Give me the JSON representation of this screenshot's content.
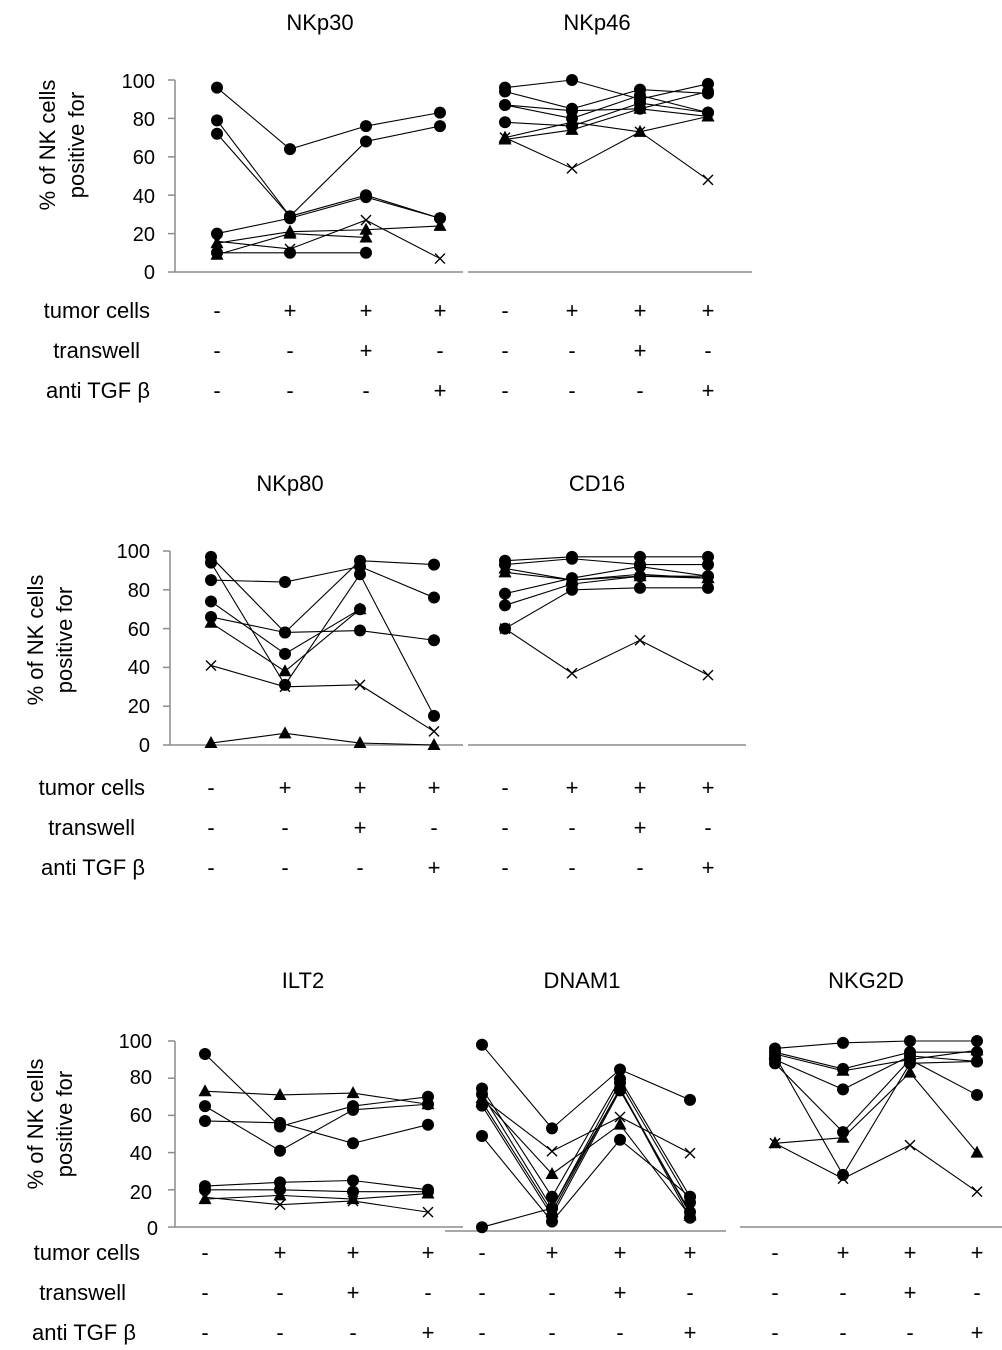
{
  "figure": {
    "y_label_line1": "% of NK cells",
    "y_label_line2": "positive for",
    "y_ticks": [
      "0",
      "20",
      "40",
      "60",
      "80",
      "100"
    ],
    "row_labels": [
      "tumor cells",
      "transwell",
      "anti TGF β"
    ],
    "condition_signs": [
      [
        "-",
        "+",
        "+",
        "+"
      ],
      [
        "-",
        "-",
        "+",
        "-"
      ],
      [
        "-",
        "-",
        "-",
        "+"
      ]
    ]
  },
  "chart_data": [
    {
      "type": "line",
      "title": "NKp30",
      "ylim": [
        0,
        100
      ],
      "x": [
        1,
        2,
        3,
        4
      ],
      "series": [
        {
          "marker": "circle",
          "values": [
            96,
            64,
            76,
            83
          ]
        },
        {
          "marker": "circle",
          "values": [
            79,
            29,
            68,
            76
          ]
        },
        {
          "marker": "circle",
          "values": [
            72,
            29,
            40,
            28
          ]
        },
        {
          "marker": "circle",
          "values": [
            20,
            28,
            39,
            28
          ]
        },
        {
          "marker": "circle",
          "values": [
            10,
            10,
            10,
            null
          ]
        },
        {
          "marker": "triangle",
          "values": [
            15,
            21,
            22,
            24
          ]
        },
        {
          "marker": "triangle",
          "values": [
            9,
            20,
            18,
            null
          ]
        },
        {
          "marker": "cross",
          "values": [
            16,
            12,
            27,
            7
          ]
        }
      ]
    },
    {
      "type": "line",
      "title": "NKp46",
      "ylim": [
        0,
        100
      ],
      "x": [
        1,
        2,
        3,
        4
      ],
      "series": [
        {
          "marker": "circle",
          "values": [
            96,
            100,
            90,
            98
          ]
        },
        {
          "marker": "circle",
          "values": [
            94,
            85,
            95,
            93
          ]
        },
        {
          "marker": "circle",
          "values": [
            87,
            84,
            85,
            94
          ]
        },
        {
          "marker": "circle",
          "values": [
            87,
            80,
            92,
            83
          ]
        },
        {
          "marker": "circle",
          "values": [
            78,
            76,
            88,
            83
          ]
        },
        {
          "marker": "triangle",
          "values": [
            69,
            74,
            85,
            81
          ]
        },
        {
          "marker": "triangle",
          "values": [
            70,
            78,
            73,
            81
          ]
        },
        {
          "marker": "cross",
          "values": [
            70,
            54,
            73,
            48
          ]
        }
      ]
    },
    {
      "type": "line",
      "title": "NKp80",
      "ylim": [
        0,
        100
      ],
      "x": [
        1,
        2,
        3,
        4
      ],
      "series": [
        {
          "marker": "circle",
          "values": [
            97,
            58,
            95,
            93
          ]
        },
        {
          "marker": "circle",
          "values": [
            94,
            31,
            88,
            15
          ]
        },
        {
          "marker": "circle",
          "values": [
            85,
            84,
            92,
            76
          ]
        },
        {
          "marker": "circle",
          "values": [
            74,
            47,
            70,
            null
          ]
        },
        {
          "marker": "circle",
          "values": [
            66,
            58,
            59,
            54
          ]
        },
        {
          "marker": "triangle",
          "values": [
            63,
            38,
            70,
            null
          ]
        },
        {
          "marker": "triangle",
          "values": [
            1,
            6,
            1,
            0
          ]
        },
        {
          "marker": "cross",
          "values": [
            41,
            30,
            31,
            7
          ]
        }
      ]
    },
    {
      "type": "line",
      "title": "CD16",
      "ylim": [
        0,
        100
      ],
      "x": [
        1,
        2,
        3,
        4
      ],
      "series": [
        {
          "marker": "circle",
          "values": [
            95,
            97,
            97,
            97
          ]
        },
        {
          "marker": "circle",
          "values": [
            93,
            96,
            93,
            93
          ]
        },
        {
          "marker": "circle",
          "values": [
            78,
            86,
            92,
            87
          ]
        },
        {
          "marker": "circle",
          "values": [
            72,
            83,
            87,
            87
          ]
        },
        {
          "marker": "circle",
          "values": [
            60,
            80,
            81,
            81
          ]
        },
        {
          "marker": "triangle",
          "values": [
            91,
            85,
            88,
            86
          ]
        },
        {
          "marker": "triangle",
          "values": [
            89,
            85,
            87,
            86
          ]
        },
        {
          "marker": "cross",
          "values": [
            60,
            37,
            54,
            36
          ]
        }
      ]
    },
    {
      "type": "line",
      "title": "ILT2",
      "ylim": [
        0,
        100
      ],
      "x": [
        1,
        2,
        3,
        4
      ],
      "series": [
        {
          "marker": "circle",
          "values": [
            93,
            54,
            65,
            70
          ]
        },
        {
          "marker": "circle",
          "values": [
            65,
            41,
            63,
            66
          ]
        },
        {
          "marker": "circle",
          "values": [
            57,
            56,
            45,
            55
          ]
        },
        {
          "marker": "circle",
          "values": [
            22,
            24,
            25,
            20
          ]
        },
        {
          "marker": "circle",
          "values": [
            20,
            20,
            19,
            19
          ]
        },
        {
          "marker": "triangle",
          "values": [
            73,
            71,
            72,
            66
          ]
        },
        {
          "marker": "triangle",
          "values": [
            15,
            17,
            15,
            18
          ]
        },
        {
          "marker": "cross",
          "values": [
            16,
            12,
            14,
            8
          ]
        }
      ]
    },
    {
      "type": "line",
      "title": "DNAM1",
      "ylim": [
        0,
        100
      ],
      "x": [
        1,
        2,
        3,
        4
      ],
      "series": [
        {
          "marker": "circle",
          "values": [
            98,
            54,
            85,
            69
          ]
        },
        {
          "marker": "circle",
          "values": [
            75,
            18,
            80,
            18
          ]
        },
        {
          "marker": "circle",
          "values": [
            72,
            12,
            78,
            15
          ]
        },
        {
          "marker": "circle",
          "values": [
            66,
            8,
            74,
            10
          ]
        },
        {
          "marker": "circle",
          "values": [
            50,
            5,
            48,
            18
          ]
        },
        {
          "marker": "circle",
          "values": [
            2,
            12,
            75,
            7
          ]
        },
        {
          "marker": "triangle",
          "values": [
            70,
            30,
            56,
            8
          ]
        },
        {
          "marker": "triangle",
          "values": [
            68,
            10,
            75,
            9
          ]
        },
        {
          "marker": "cross",
          "values": [
            70,
            42,
            60,
            41
          ]
        }
      ]
    },
    {
      "type": "line",
      "title": "NKG2D",
      "ylim": [
        0,
        100
      ],
      "x": [
        1,
        2,
        3,
        4
      ],
      "series": [
        {
          "marker": "circle",
          "values": [
            96,
            99,
            100,
            100
          ]
        },
        {
          "marker": "circle",
          "values": [
            94,
            85,
            94,
            94
          ]
        },
        {
          "marker": "circle",
          "values": [
            90,
            74,
            92,
            89
          ]
        },
        {
          "marker": "circle",
          "values": [
            88,
            51,
            90,
            71
          ]
        },
        {
          "marker": "circle",
          "values": [
            92,
            28,
            88,
            89
          ]
        },
        {
          "marker": "triangle",
          "values": [
            45,
            48,
            83,
            40
          ]
        },
        {
          "marker": "triangle",
          "values": [
            93,
            84,
            90,
            95
          ]
        },
        {
          "marker": "cross",
          "values": [
            45,
            26,
            44,
            19
          ]
        }
      ]
    }
  ]
}
